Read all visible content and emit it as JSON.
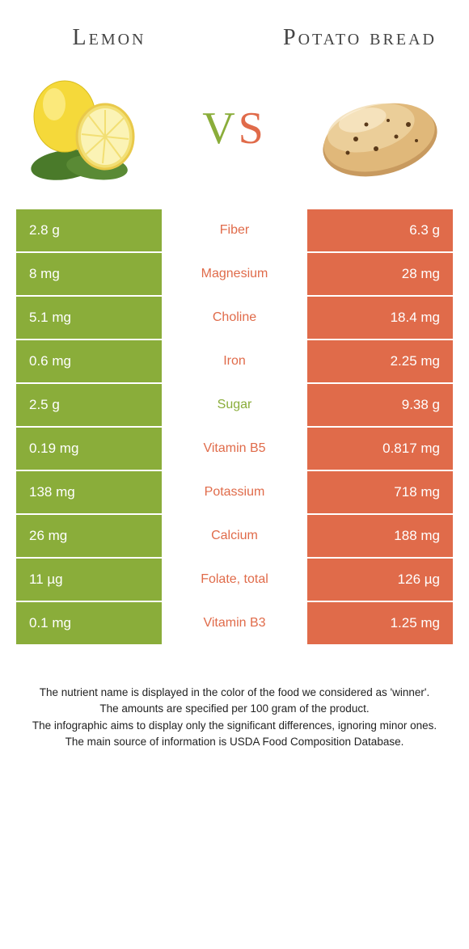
{
  "colors": {
    "left": "#8aad3a",
    "right": "#e06b4a",
    "background": "#ffffff",
    "text": "#333333"
  },
  "left_food": {
    "title": "Lemon"
  },
  "right_food": {
    "title": "Potato bread"
  },
  "vs_label": {
    "v": "V",
    "s": "S"
  },
  "rows": [
    {
      "left": "2.8 g",
      "label": "Fiber",
      "right": "6.3 g",
      "winner": "right"
    },
    {
      "left": "8 mg",
      "label": "Magnesium",
      "right": "28 mg",
      "winner": "right"
    },
    {
      "left": "5.1 mg",
      "label": "Choline",
      "right": "18.4 mg",
      "winner": "right"
    },
    {
      "left": "0.6 mg",
      "label": "Iron",
      "right": "2.25 mg",
      "winner": "right"
    },
    {
      "left": "2.5 g",
      "label": "Sugar",
      "right": "9.38 g",
      "winner": "left"
    },
    {
      "left": "0.19 mg",
      "label": "Vitamin B5",
      "right": "0.817 mg",
      "winner": "right"
    },
    {
      "left": "138 mg",
      "label": "Potassium",
      "right": "718 mg",
      "winner": "right"
    },
    {
      "left": "26 mg",
      "label": "Calcium",
      "right": "188 mg",
      "winner": "right"
    },
    {
      "left": "11 µg",
      "label": "Folate, total",
      "right": "126 µg",
      "winner": "right"
    },
    {
      "left": "0.1 mg",
      "label": "Vitamin B3",
      "right": "1.25 mg",
      "winner": "right"
    }
  ],
  "footnotes": [
    "The nutrient name is displayed in the color of the food we considered as 'winner'.",
    "The amounts are specified per 100 gram of the product.",
    "The infographic aims to display only the significant differences, ignoring minor ones.",
    "The main source of information is USDA Food Composition Database."
  ]
}
